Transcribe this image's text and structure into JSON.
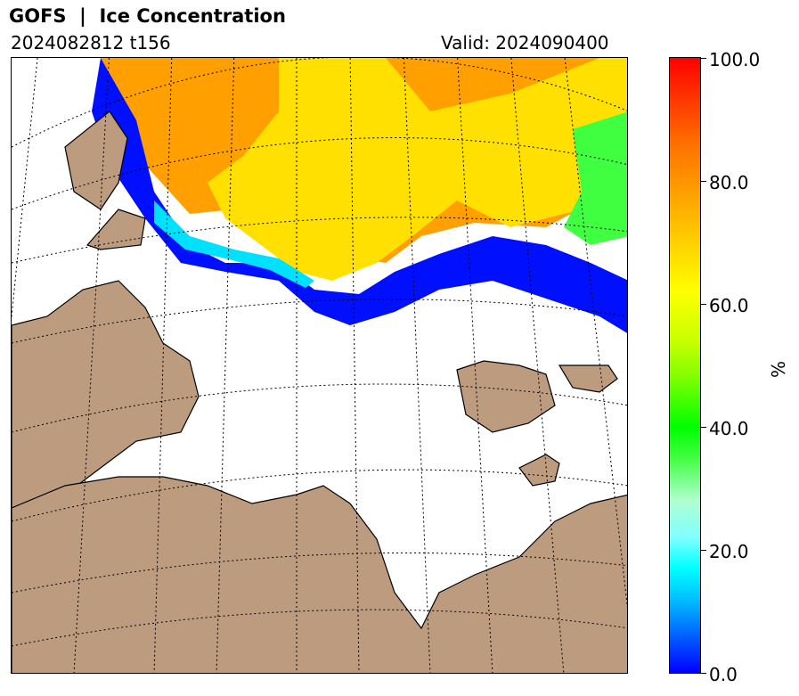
{
  "header": {
    "title": "GOFS  |  Ice Concentration",
    "run": "2024082812 t156",
    "valid": "Valid: 2024090400"
  },
  "colorbar": {
    "ticks": [
      "0.0",
      "20.0",
      "40.0",
      "60.0",
      "80.0",
      "100.0"
    ],
    "unit": "%",
    "min": 0,
    "max": 100
  },
  "map": {
    "land_color": "#bd9b7f",
    "projection": "polar stereographic",
    "gridlines": "dotted"
  }
}
